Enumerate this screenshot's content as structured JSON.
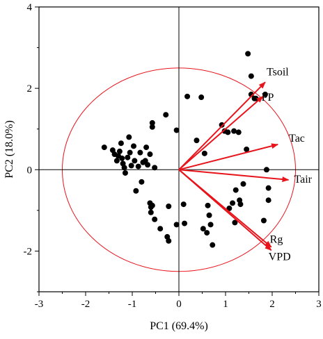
{
  "chart_data": {
    "type": "scatter",
    "title": "",
    "xlabel": "PC1 (69.4%)",
    "ylabel": "PC2 (18.0%)",
    "xlim": [
      -3,
      3
    ],
    "ylim": [
      -3,
      4
    ],
    "xticks": [
      -3,
      -2,
      -1,
      0,
      1,
      2,
      3
    ],
    "yticks": [
      -2,
      0,
      2,
      4
    ],
    "grid": false,
    "colors": {
      "points": "#000000",
      "vectors": "#e8141b",
      "circle": "#e8141b"
    },
    "circle_radius": 2.5,
    "points": [
      [
        -1.6,
        0.55
      ],
      [
        -1.42,
        0.48
      ],
      [
        -1.38,
        0.38
      ],
      [
        -1.33,
        0.22
      ],
      [
        -1.3,
        0.34
      ],
      [
        -1.27,
        0.45
      ],
      [
        -1.24,
        0.65
      ],
      [
        -1.22,
        0.28
      ],
      [
        -1.2,
        0.15
      ],
      [
        -1.17,
        0.05
      ],
      [
        -1.15,
        -0.08
      ],
      [
        -1.1,
        0.3
      ],
      [
        -1.07,
        0.8
      ],
      [
        -1.05,
        0.42
      ],
      [
        -1.02,
        0.1
      ],
      [
        -0.97,
        0.58
      ],
      [
        -0.95,
        0.22
      ],
      [
        -0.92,
        -0.52
      ],
      [
        -0.87,
        0.08
      ],
      [
        -0.83,
        0.42
      ],
      [
        -0.77,
        0.18
      ],
      [
        -0.72,
        0.22
      ],
      [
        -0.7,
        0.55
      ],
      [
        -0.67,
        0.12
      ],
      [
        -0.62,
        0.38
      ],
      [
        -0.52,
        0.05
      ],
      [
        -0.8,
        -0.3
      ],
      [
        -0.57,
        1.05
      ],
      [
        -0.57,
        1.15
      ],
      [
        -0.28,
        1.35
      ],
      [
        -0.05,
        0.97
      ],
      [
        -0.62,
        -0.82
      ],
      [
        -0.6,
        -0.92
      ],
      [
        -0.57,
        -0.88
      ],
      [
        -0.6,
        -1.05
      ],
      [
        -0.52,
        -1.22
      ],
      [
        -0.4,
        -1.45
      ],
      [
        -0.22,
        -0.9
      ],
      [
        -0.25,
        -1.65
      ],
      [
        -0.22,
        -1.75
      ],
      [
        -0.05,
        -1.35
      ],
      [
        0.1,
        -0.85
      ],
      [
        0.12,
        -1.32
      ],
      [
        0.18,
        1.8
      ],
      [
        0.38,
        0.72
      ],
      [
        0.48,
        1.78
      ],
      [
        0.55,
        0.4
      ],
      [
        0.62,
        -0.88
      ],
      [
        0.65,
        -1.12
      ],
      [
        0.68,
        -1.35
      ],
      [
        0.52,
        -1.45
      ],
      [
        0.6,
        -1.55
      ],
      [
        0.72,
        -1.85
      ],
      [
        0.92,
        1.1
      ],
      [
        0.98,
        0.95
      ],
      [
        1.05,
        0.92
      ],
      [
        1.18,
        0.95
      ],
      [
        1.28,
        0.92
      ],
      [
        1.22,
        -0.5
      ],
      [
        1.3,
        -0.75
      ],
      [
        1.32,
        -0.85
      ],
      [
        1.15,
        -0.82
      ],
      [
        1.08,
        -0.95
      ],
      [
        1.2,
        -1.3
      ],
      [
        1.38,
        -0.35
      ],
      [
        1.45,
        0.5
      ],
      [
        1.48,
        2.85
      ],
      [
        1.55,
        2.3
      ],
      [
        1.55,
        1.85
      ],
      [
        1.65,
        1.75
      ],
      [
        1.62,
        1.75
      ],
      [
        1.88,
        0.0
      ],
      [
        1.92,
        -0.45
      ],
      [
        1.92,
        -0.75
      ],
      [
        1.82,
        -1.25
      ],
      [
        1.85,
        1.85
      ]
    ],
    "vectors": [
      {
        "label": "Tsoil",
        "x": 1.85,
        "y": 2.15
      },
      {
        "label": "PP",
        "x": 1.8,
        "y": 1.8
      },
      {
        "label": "Tac",
        "x": 2.12,
        "y": 0.62
      },
      {
        "label": "Tair",
        "x": 2.35,
        "y": -0.25
      },
      {
        "label": "Rg",
        "x": 1.98,
        "y": -1.9
      },
      {
        "label": "VPD",
        "x": 1.98,
        "y": -1.98
      }
    ]
  }
}
